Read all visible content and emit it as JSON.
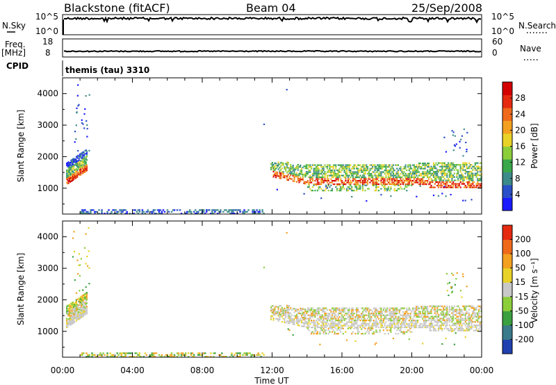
{
  "header": {
    "station": "Blackstone (fitACF)",
    "beam": "Beam 04",
    "date": "25/Sep/2008"
  },
  "params": {
    "nsky_label": "N.Sky",
    "nsky_ticks": [
      "10^5",
      "10^0"
    ],
    "nsearch_label": "N.Search",
    "nsearch_ticks": [
      "10^5",
      "10^0"
    ],
    "freq_label": "Freq.",
    "freq_unit": "[MHz]",
    "freq_ticks": [
      "18",
      "8"
    ],
    "nave_label": "Nave",
    "nave_ticks": [
      "60",
      "0"
    ],
    "cpid_label": "CPID",
    "cpid_value": "themis (tau) 3310"
  },
  "chart_data": [
    {
      "type": "heatmap",
      "name": "power",
      "ylabel": "Slant Range [km]",
      "ylim": [
        180,
        4500
      ],
      "yticks": [
        "4000",
        "3000",
        "2000",
        "1000"
      ],
      "xlim_hours": [
        0,
        24
      ],
      "colorbar": {
        "label": "Power [dB]",
        "ticks": [
          "28",
          "24",
          "20",
          "16",
          "12",
          "8",
          "4"
        ],
        "colors": [
          "#1a1aff",
          "#2a4fc8",
          "#3d8a8a",
          "#3aa84a",
          "#8ccd3a",
          "#e8d228",
          "#f3a020",
          "#ee6a1a",
          "#e52a10",
          "#d40000"
        ]
      },
      "regions": [
        {
          "hours": [
            0.2,
            1.4
          ],
          "range_km": [
            1150,
            2300
          ],
          "dominant": "red-orange"
        },
        {
          "hours": [
            11.8,
            24
          ],
          "range_km": [
            950,
            2000
          ],
          "dominant": "orange-green"
        },
        {
          "hours": [
            1.0,
            11.5
          ],
          "range_km": [
            200,
            400
          ],
          "dominant": "blue"
        }
      ]
    },
    {
      "type": "heatmap",
      "name": "velocity",
      "ylabel": "Slant Range [km]",
      "ylim": [
        180,
        4500
      ],
      "yticks": [
        "4000",
        "3000",
        "2000",
        "1000"
      ],
      "xlim_hours": [
        0,
        24
      ],
      "xticks": [
        "00:00",
        "04:00",
        "08:00",
        "12:00",
        "16:00",
        "20:00",
        "00:00"
      ],
      "xlabel": "Time UT",
      "colorbar": {
        "label": "Velocity [m s⁻¹]",
        "ticks": [
          "200",
          "100",
          "50",
          "15",
          "-15",
          "-50",
          "-100",
          "-200"
        ],
        "colors": [
          "#2040b0",
          "#3a7a8a",
          "#3aa040",
          "#8ccd3a",
          "#c8c8c8",
          "#e8d228",
          "#f3a020",
          "#ee6a1a",
          "#e52a10"
        ]
      },
      "regions": [
        {
          "hours": [
            0.2,
            1.4
          ],
          "range_km": [
            1150,
            2300
          ],
          "dominant": "grey"
        },
        {
          "hours": [
            11.8,
            24
          ],
          "range_km": [
            950,
            2000
          ],
          "dominant": "grey"
        },
        {
          "hours": [
            1.0,
            11.5
          ],
          "range_km": [
            200,
            400
          ],
          "dominant": "yellow-green"
        }
      ]
    }
  ]
}
